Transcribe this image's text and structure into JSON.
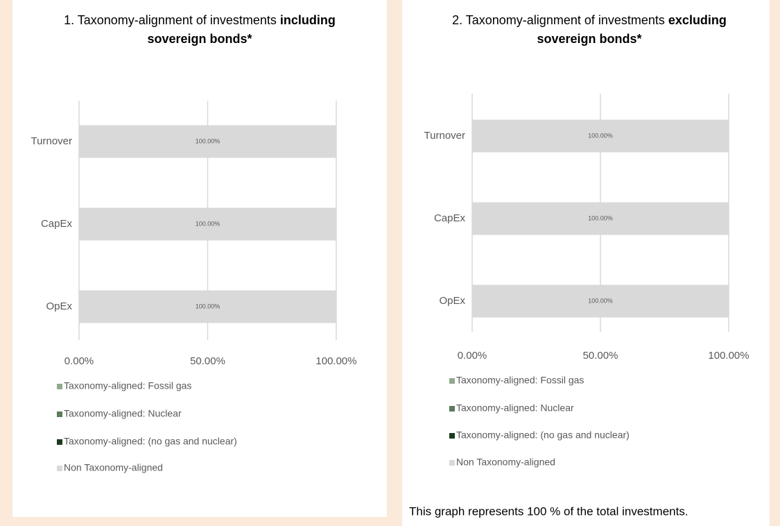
{
  "chart_data": [
    {
      "type": "bar",
      "orientation": "horizontal",
      "stacked": true,
      "title_lines": [
        [
          {
            "text": "1. Taxonomy-alignment of investments",
            "bold": false
          },
          {
            "text": "including",
            "bold": true
          }
        ],
        [
          {
            "text": "sovereign bonds*",
            "bold": true
          }
        ]
      ],
      "categories": [
        "Turnover",
        "CapEx",
        "OpEx"
      ],
      "series": [
        {
          "name": "Taxonomy-aligned: Fossil gas",
          "color": "#8faa8c",
          "values": [
            0,
            0,
            0
          ]
        },
        {
          "name": "Taxonomy-aligned: Nuclear",
          "color": "#5b7b5a",
          "values": [
            0,
            0,
            0
          ]
        },
        {
          "name": "Taxonomy-aligned: (no gas and nuclear)",
          "color": "#1d3a1d",
          "values": [
            0,
            0,
            0
          ]
        },
        {
          "name": "Non Taxonomy-aligned",
          "color": "#d9d9d9",
          "values": [
            100,
            100,
            100
          ],
          "value_labels": [
            "100.00%",
            "100.00%",
            "100.00%"
          ]
        }
      ],
      "xlim": [
        0,
        100
      ],
      "xticks": [
        {
          "value": 0,
          "label": "0.00%"
        },
        {
          "value": 50,
          "label": "50.00%"
        },
        {
          "value": 100,
          "label": "100.00%"
        }
      ],
      "grid": true,
      "legend": "bottom"
    },
    {
      "type": "bar",
      "orientation": "horizontal",
      "stacked": true,
      "title_lines": [
        [
          {
            "text": "2. Taxonomy-alignment of investments",
            "bold": false
          },
          {
            "text": "excluding",
            "bold": true
          }
        ],
        [
          {
            "text": "sovereign bonds*",
            "bold": true
          }
        ]
      ],
      "categories": [
        "Turnover",
        "CapEx",
        "OpEx"
      ],
      "series": [
        {
          "name": "Taxonomy-aligned: Fossil gas",
          "color": "#8faa8c",
          "values": [
            0,
            0,
            0
          ]
        },
        {
          "name": "Taxonomy-aligned: Nuclear",
          "color": "#5b7b5a",
          "values": [
            0,
            0,
            0
          ]
        },
        {
          "name": "Taxonomy-aligned: (no gas and nuclear)",
          "color": "#1d3a1d",
          "values": [
            0,
            0,
            0
          ]
        },
        {
          "name": "Non Taxonomy-aligned",
          "color": "#d9d9d9",
          "values": [
            100,
            100,
            100
          ],
          "value_labels": [
            "100.00%",
            "100.00%",
            "100.00%"
          ]
        }
      ],
      "xlim": [
        0,
        100
      ],
      "xticks": [
        {
          "value": 0,
          "label": "0.00%"
        },
        {
          "value": 50,
          "label": "50.00%"
        },
        {
          "value": 100,
          "label": "100.00%"
        }
      ],
      "grid": true,
      "legend": "bottom",
      "note": "This graph represents 100 % of the total investments."
    }
  ]
}
